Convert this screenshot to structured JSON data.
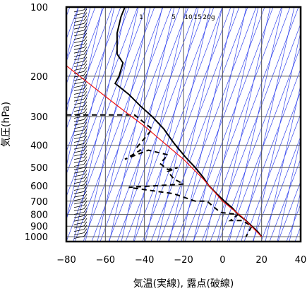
{
  "chart_data": {
    "type": "line",
    "subtype": "skew-T log-P thermodynamic diagram",
    "xlabel": "気温(実線), 露点(破線)",
    "ylabel": "気圧(hPa)",
    "xlim": [
      -80,
      40
    ],
    "ylim": [
      1050,
      100
    ],
    "y_scale": "log",
    "grid": true,
    "x_ticks": [
      -80,
      -60,
      -40,
      -20,
      0,
      20,
      40
    ],
    "y_ticks": [
      100,
      200,
      300,
      400,
      500,
      600,
      700,
      800,
      900,
      1000
    ],
    "mixing_ratio_labels": [
      "1",
      "5",
      "10",
      "15",
      "20g"
    ],
    "colors": {
      "isolines": "#3344ee",
      "parcel": "#ee1111",
      "profile": "#000000",
      "grid": "#555555"
    },
    "series": [
      {
        "style": "solid",
        "points": [
          [
            -50,
            100
          ],
          [
            -52,
            110
          ],
          [
            -54,
            130
          ],
          [
            -54,
            160
          ],
          [
            -51,
            175
          ],
          [
            -53,
            200
          ],
          [
            -55,
            215
          ],
          [
            -48,
            240
          ],
          [
            -42,
            270
          ],
          [
            -36,
            300
          ],
          [
            -30,
            340
          ],
          [
            -26,
            380
          ],
          [
            -24,
            400
          ],
          [
            -19,
            450
          ],
          [
            -14,
            500
          ],
          [
            -10,
            550
          ],
          [
            -7,
            600
          ],
          [
            -3,
            650
          ],
          [
            1,
            700
          ],
          [
            5,
            750
          ],
          [
            8,
            800
          ],
          [
            12,
            850
          ],
          [
            15,
            900
          ],
          [
            18,
            950
          ],
          [
            20,
            1000
          ]
        ]
      },
      {
        "style": "dashed",
        "points": [
          [
            -80,
            295
          ],
          [
            -45,
            295
          ],
          [
            -36,
            340
          ],
          [
            -44,
            410
          ],
          [
            -42,
            420
          ],
          [
            -50,
            460
          ],
          [
            -38,
            420
          ],
          [
            -28,
            440
          ],
          [
            -32,
            480
          ],
          [
            -28,
            510
          ],
          [
            -23,
            500
          ],
          [
            -28,
            520
          ],
          [
            -25,
            560
          ],
          [
            -20,
            590
          ],
          [
            -48,
            610
          ],
          [
            -25,
            650
          ],
          [
            -14,
            700
          ],
          [
            -8,
            700
          ],
          [
            -3,
            760
          ],
          [
            -1,
            785
          ],
          [
            8,
            800
          ],
          [
            4,
            850
          ],
          [
            10,
            850
          ],
          [
            15,
            900
          ],
          [
            12,
            1000
          ]
        ]
      },
      {
        "style": "parcel",
        "points": [
          [
            -80,
            180
          ],
          [
            -70,
            210
          ],
          [
            -60,
            245
          ],
          [
            -50,
            285
          ],
          [
            -40,
            330
          ],
          [
            -30,
            390
          ],
          [
            -20,
            460
          ],
          [
            -10,
            560
          ],
          [
            0,
            700
          ],
          [
            10,
            820
          ],
          [
            20,
            1000
          ]
        ]
      }
    ]
  }
}
